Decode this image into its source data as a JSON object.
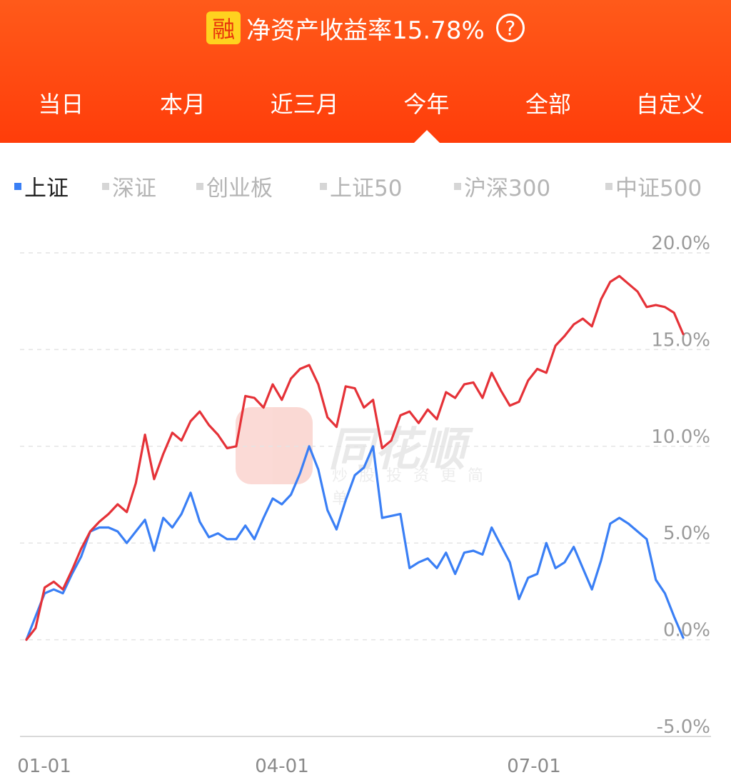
{
  "header": {
    "badge": "融",
    "title": "净资产收益率15.78%",
    "help": "?"
  },
  "tabs": [
    {
      "label": "当日",
      "active": false
    },
    {
      "label": "本月",
      "active": false
    },
    {
      "label": "近三月",
      "active": false
    },
    {
      "label": "今年",
      "active": true
    },
    {
      "label": "全部",
      "active": false
    },
    {
      "label": "自定义",
      "active": false
    }
  ],
  "index_tabs": [
    {
      "label": "上证",
      "active": true
    },
    {
      "label": "深证",
      "active": false
    },
    {
      "label": "创业板",
      "active": false
    },
    {
      "label": "上证50",
      "active": false
    },
    {
      "label": "沪深300",
      "active": false
    },
    {
      "label": "中证500",
      "active": false
    }
  ],
  "watermark": {
    "brand": "同花顺",
    "slogan": "炒股投资更简单"
  },
  "colors": {
    "header": "#ff4a12",
    "series_account": "#e53238",
    "series_index": "#3a7ff5"
  },
  "chart_data": {
    "type": "line",
    "x_labels": [
      "01-01",
      "04-01",
      "07-01"
    ],
    "y_ticks": [
      "20.0%",
      "15.0%",
      "10.0%",
      "5.0%",
      "0.0%",
      "-5.0%"
    ],
    "ylim": [
      -5,
      20
    ],
    "grid": true,
    "series": [
      {
        "color": "#e53238",
        "values": [
          0,
          0.6,
          2.7,
          3.0,
          2.6,
          3.6,
          4.7,
          5.6,
          6.1,
          6.5,
          7.0,
          6.6,
          8.1,
          10.6,
          8.3,
          9.6,
          10.7,
          10.3,
          11.3,
          11.8,
          11.1,
          10.6,
          9.9,
          10.0,
          12.6,
          12.5,
          12.0,
          13.2,
          12.4,
          13.5,
          14.0,
          14.2,
          13.2,
          11.5,
          11.0,
          13.1,
          13.0,
          12.0,
          12.4,
          9.9,
          10.3,
          11.6,
          11.8,
          11.2,
          11.9,
          11.4,
          12.8,
          12.5,
          13.2,
          13.3,
          12.5,
          13.8,
          12.9,
          12.1,
          12.3,
          13.4,
          14.0,
          13.8,
          15.2,
          15.7,
          16.3,
          16.6,
          16.2,
          17.6,
          18.5,
          18.8,
          18.4,
          18.0,
          17.2,
          17.3,
          17.2,
          16.9,
          15.8
        ]
      },
      {
        "color": "#3a7ff5",
        "values": [
          0,
          1.2,
          2.4,
          2.6,
          2.4,
          3.4,
          4.3,
          5.6,
          5.8,
          5.8,
          5.6,
          5.0,
          5.6,
          6.2,
          4.6,
          6.3,
          5.8,
          6.5,
          7.6,
          6.1,
          5.3,
          5.5,
          5.2,
          5.2,
          5.9,
          5.2,
          6.3,
          7.3,
          7.0,
          7.5,
          8.6,
          10.0,
          8.8,
          6.7,
          5.7,
          7.2,
          8.5,
          8.9,
          10.0,
          6.3,
          6.4,
          6.5,
          3.7,
          4.0,
          4.2,
          3.7,
          4.5,
          3.4,
          4.5,
          4.6,
          4.4,
          5.8,
          4.9,
          4.0,
          2.1,
          3.2,
          3.4,
          5.0,
          3.7,
          4.0,
          4.8,
          3.7,
          2.6,
          4.1,
          6.0,
          6.3,
          6.0,
          5.6,
          5.2,
          3.1,
          2.4,
          1.2,
          0.1
        ]
      }
    ]
  }
}
